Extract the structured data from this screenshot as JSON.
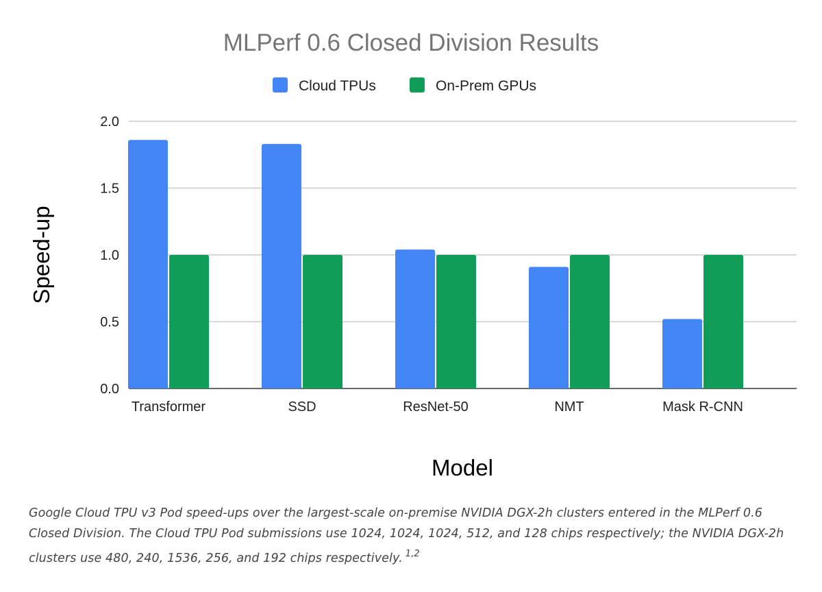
{
  "chart_data": {
    "type": "bar",
    "title": "MLPerf 0.6 Closed Division Results",
    "xlabel": "Model",
    "ylabel": "Speed-up",
    "categories": [
      "Transformer",
      "SSD",
      "ResNet-50",
      "NMT",
      "Mask R-CNN"
    ],
    "series": [
      {
        "name": "Cloud TPUs",
        "color": "#4285f4",
        "values": [
          1.86,
          1.83,
          1.04,
          0.91,
          0.52
        ]
      },
      {
        "name": "On-Prem GPUs",
        "color": "#0f9d58",
        "values": [
          1.0,
          1.0,
          1.0,
          1.0,
          1.0
        ]
      }
    ],
    "ylim": [
      0,
      2.0
    ],
    "yticks": [
      "0.0",
      "0.5",
      "1.0",
      "1.5",
      "2.0"
    ],
    "grid": true,
    "legend": "top-center"
  },
  "caption": {
    "text": "Google Cloud TPU v3 Pod speed-ups over the largest-scale on-premise NVIDIA DGX-2h clusters entered in the MLPerf 0.6 Closed Division. The Cloud TPU Pod submissions use 1024, 1024, 1024, 512, and 128 chips respectively; the NVIDIA DGX-2h clusters use 480, 240, 1536, 256, and 192 chips respectively.",
    "footnote": "1,2"
  }
}
